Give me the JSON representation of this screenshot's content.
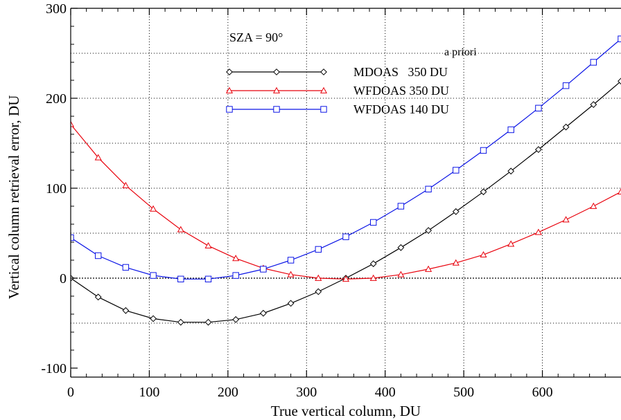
{
  "chart_data": {
    "type": "line",
    "xlabel": "True vertical column, DU",
    "ylabel": "Vertical column retrieval error, DU",
    "xlim": [
      0,
      700
    ],
    "ylim": [
      -110,
      300
    ],
    "x_ticks": [
      0,
      100,
      200,
      300,
      400,
      500,
      600
    ],
    "y_ticks": [
      -100,
      0,
      100,
      200,
      300
    ],
    "x_tick_labels": [
      "0",
      "100",
      "200",
      "300",
      "400",
      "500",
      "600"
    ],
    "y_tick_labels": [
      "-100",
      "0",
      "100",
      "200",
      "300"
    ],
    "x_grid": [
      100,
      200,
      300,
      400,
      500,
      600
    ],
    "y_grid": [
      -50,
      0,
      50,
      100,
      150,
      200,
      250
    ],
    "grid": true,
    "annotation": "SZA = 90°",
    "legend_header": "a priori",
    "legend_position": "top-center",
    "series": [
      {
        "name": "MDOAS   350 DU",
        "color": "#000000",
        "marker": "diamond",
        "x": [
          0,
          35,
          70,
          105,
          140,
          175,
          210,
          245,
          280,
          315,
          350,
          385,
          420,
          455,
          490,
          525,
          560,
          595,
          630,
          665,
          700
        ],
        "y": [
          0,
          -21,
          -36,
          -45,
          -49,
          -49,
          -46,
          -39,
          -28,
          -15,
          0,
          16,
          34,
          53,
          74,
          96,
          119,
          143,
          168,
          193,
          219
        ]
      },
      {
        "name": "WFDOAS 350 DU",
        "color": "#e8000b",
        "marker": "triangle",
        "x": [
          0,
          35,
          70,
          105,
          140,
          175,
          210,
          245,
          280,
          315,
          350,
          385,
          420,
          455,
          490,
          525,
          560,
          595,
          630,
          665,
          700
        ],
        "y": [
          171,
          134,
          103,
          77,
          54,
          36,
          22,
          11,
          4,
          0,
          -1,
          0,
          4,
          10,
          17,
          26,
          38,
          51,
          65,
          80,
          96
        ]
      },
      {
        "name": "WFDOAS 140 DU",
        "color": "#0a14e6",
        "marker": "square",
        "x": [
          0,
          35,
          70,
          105,
          140,
          175,
          210,
          245,
          280,
          315,
          350,
          385,
          420,
          455,
          490,
          525,
          560,
          595,
          630,
          665,
          700
        ],
        "y": [
          45,
          25,
          12,
          3,
          -1,
          -1,
          3,
          10,
          20,
          32,
          46,
          62,
          80,
          99,
          120,
          142,
          165,
          189,
          214,
          240,
          266
        ]
      }
    ]
  }
}
